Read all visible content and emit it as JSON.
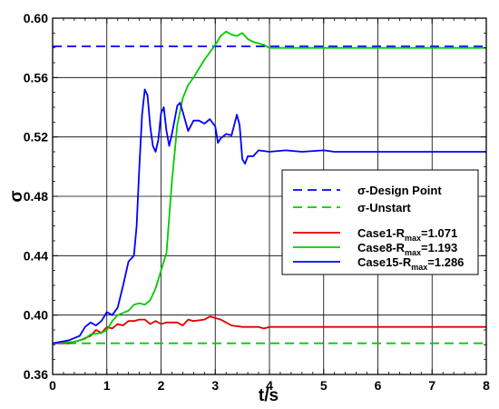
{
  "chart_data": {
    "type": "line",
    "title": "",
    "xlabel": "t/s",
    "ylabel": "σ",
    "xlim": [
      0,
      8
    ],
    "ylim": [
      0.36,
      0.6
    ],
    "grid": true,
    "legend_position": "right",
    "x_ticks": [
      "0",
      "1",
      "2",
      "3",
      "4",
      "5",
      "6",
      "7",
      "8"
    ],
    "y_ticks": [
      "0.36",
      "0.40",
      "0.44",
      "0.48",
      "0.52",
      "0.56",
      "0.60"
    ],
    "series": [
      {
        "name": "σ-Design Point",
        "color": "#0000ff",
        "dash": true,
        "points": [
          [
            0,
            0.581
          ],
          [
            8,
            0.581
          ]
        ]
      },
      {
        "name": "σ-Unstart",
        "color": "#00cc00",
        "dash": true,
        "points": [
          [
            0,
            0.381
          ],
          [
            8,
            0.381
          ]
        ]
      },
      {
        "name": "Case1-R",
        "sub": "max",
        "value_text": "=1.071",
        "color": "#e00000",
        "dash": false,
        "points": [
          [
            0,
            0.381
          ],
          [
            0.3,
            0.381
          ],
          [
            0.5,
            0.383
          ],
          [
            0.7,
            0.386
          ],
          [
            0.8,
            0.39
          ],
          [
            0.9,
            0.388
          ],
          [
            1.0,
            0.392
          ],
          [
            1.1,
            0.391
          ],
          [
            1.2,
            0.394
          ],
          [
            1.3,
            0.393
          ],
          [
            1.4,
            0.396
          ],
          [
            1.5,
            0.396
          ],
          [
            1.6,
            0.397
          ],
          [
            1.7,
            0.397
          ],
          [
            1.8,
            0.394
          ],
          [
            1.9,
            0.396
          ],
          [
            2.0,
            0.394
          ],
          [
            2.1,
            0.395
          ],
          [
            2.3,
            0.395
          ],
          [
            2.4,
            0.393
          ],
          [
            2.5,
            0.397
          ],
          [
            2.6,
            0.396
          ],
          [
            2.8,
            0.397
          ],
          [
            2.9,
            0.399
          ],
          [
            3.0,
            0.398
          ],
          [
            3.1,
            0.397
          ],
          [
            3.2,
            0.395
          ],
          [
            3.3,
            0.393
          ],
          [
            3.5,
            0.392
          ],
          [
            3.8,
            0.392
          ],
          [
            3.9,
            0.391
          ],
          [
            4.0,
            0.392
          ],
          [
            8,
            0.392
          ]
        ]
      },
      {
        "name": "Case8-R",
        "sub": "max",
        "value_text": "=1.193",
        "color": "#00cc00",
        "dash": false,
        "points": [
          [
            0,
            0.381
          ],
          [
            0.4,
            0.382
          ],
          [
            0.6,
            0.384
          ],
          [
            0.7,
            0.387
          ],
          [
            0.9,
            0.388
          ],
          [
            1.0,
            0.39
          ],
          [
            1.1,
            0.396
          ],
          [
            1.2,
            0.4
          ],
          [
            1.4,
            0.403
          ],
          [
            1.5,
            0.407
          ],
          [
            1.6,
            0.408
          ],
          [
            1.7,
            0.407
          ],
          [
            1.8,
            0.41
          ],
          [
            1.9,
            0.418
          ],
          [
            2.0,
            0.43
          ],
          [
            2.1,
            0.442
          ],
          [
            2.2,
            0.49
          ],
          [
            2.3,
            0.528
          ],
          [
            2.4,
            0.546
          ],
          [
            2.5,
            0.555
          ],
          [
            2.6,
            0.56
          ],
          [
            2.7,
            0.566
          ],
          [
            2.8,
            0.572
          ],
          [
            2.9,
            0.577
          ],
          [
            3.0,
            0.582
          ],
          [
            3.1,
            0.588
          ],
          [
            3.2,
            0.591
          ],
          [
            3.3,
            0.589
          ],
          [
            3.4,
            0.588
          ],
          [
            3.5,
            0.59
          ],
          [
            3.6,
            0.586
          ],
          [
            3.7,
            0.584
          ],
          [
            3.8,
            0.583
          ],
          [
            3.9,
            0.582
          ],
          [
            4.0,
            0.58
          ],
          [
            8,
            0.58
          ]
        ]
      },
      {
        "name": "Case15-R",
        "sub": "max",
        "value_text": "=1.286",
        "color": "#0000ff",
        "dash": false,
        "points": [
          [
            0,
            0.381
          ],
          [
            0.3,
            0.383
          ],
          [
            0.5,
            0.386
          ],
          [
            0.6,
            0.392
          ],
          [
            0.7,
            0.395
          ],
          [
            0.8,
            0.393
          ],
          [
            0.9,
            0.396
          ],
          [
            1.0,
            0.402
          ],
          [
            1.1,
            0.4
          ],
          [
            1.2,
            0.405
          ],
          [
            1.3,
            0.42
          ],
          [
            1.4,
            0.436
          ],
          [
            1.5,
            0.44
          ],
          [
            1.55,
            0.46
          ],
          [
            1.6,
            0.5
          ],
          [
            1.65,
            0.535
          ],
          [
            1.7,
            0.552
          ],
          [
            1.75,
            0.548
          ],
          [
            1.8,
            0.527
          ],
          [
            1.85,
            0.514
          ],
          [
            1.9,
            0.51
          ],
          [
            1.95,
            0.518
          ],
          [
            2.0,
            0.536
          ],
          [
            2.05,
            0.54
          ],
          [
            2.1,
            0.524
          ],
          [
            2.15,
            0.514
          ],
          [
            2.2,
            0.522
          ],
          [
            2.3,
            0.541
          ],
          [
            2.35,
            0.543
          ],
          [
            2.4,
            0.537
          ],
          [
            2.5,
            0.524
          ],
          [
            2.6,
            0.531
          ],
          [
            2.7,
            0.531
          ],
          [
            2.8,
            0.529
          ],
          [
            2.9,
            0.532
          ],
          [
            3.0,
            0.527
          ],
          [
            3.05,
            0.516
          ],
          [
            3.1,
            0.519
          ],
          [
            3.2,
            0.522
          ],
          [
            3.3,
            0.521
          ],
          [
            3.4,
            0.535
          ],
          [
            3.45,
            0.528
          ],
          [
            3.5,
            0.505
          ],
          [
            3.55,
            0.502
          ],
          [
            3.6,
            0.507
          ],
          [
            3.7,
            0.507
          ],
          [
            3.8,
            0.511
          ],
          [
            4.0,
            0.51
          ],
          [
            4.3,
            0.511
          ],
          [
            4.6,
            0.51
          ],
          [
            5.0,
            0.511
          ],
          [
            5.2,
            0.51
          ],
          [
            5.5,
            0.51
          ],
          [
            8,
            0.51
          ]
        ]
      }
    ]
  }
}
